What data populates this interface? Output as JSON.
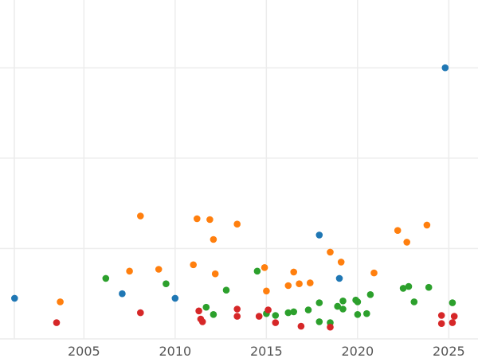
{
  "chart_data": {
    "type": "scatter",
    "title": "",
    "xlabel": "",
    "ylabel": "",
    "xlim": [
      2000.4,
      2026.6
    ],
    "ylim": [
      0,
      3.75
    ],
    "x_ticks": [
      2005,
      2010,
      2015,
      2020,
      2025
    ],
    "y_gridlines": [
      0,
      1,
      2,
      3
    ],
    "grid": true,
    "legend": "none",
    "colors": {
      "blue": "#1f77b4",
      "orange": "#ff7f0e",
      "green": "#2ca02c",
      "red": "#d62728"
    },
    "series": [
      {
        "color": "#1f77b4",
        "points": [
          [
            2001.2,
            0.45
          ],
          [
            2007.1,
            0.5
          ],
          [
            2010.0,
            0.45
          ],
          [
            2017.9,
            1.15
          ],
          [
            2019.0,
            0.67
          ],
          [
            2024.8,
            3.0
          ]
        ]
      },
      {
        "color": "#ff7f0e",
        "points": [
          [
            2003.7,
            0.41
          ],
          [
            2007.5,
            0.75
          ],
          [
            2008.1,
            1.36
          ],
          [
            2009.1,
            0.77
          ],
          [
            2011.0,
            0.82
          ],
          [
            2011.2,
            1.33
          ],
          [
            2011.9,
            1.32
          ],
          [
            2012.1,
            1.1
          ],
          [
            2012.2,
            0.72
          ],
          [
            2013.4,
            1.27
          ],
          [
            2014.9,
            0.79
          ],
          [
            2015.0,
            0.53
          ],
          [
            2016.2,
            0.59
          ],
          [
            2016.5,
            0.74
          ],
          [
            2016.8,
            0.61
          ],
          [
            2017.4,
            0.62
          ],
          [
            2018.5,
            0.96
          ],
          [
            2019.1,
            0.85
          ],
          [
            2020.9,
            0.73
          ],
          [
            2022.2,
            1.2
          ],
          [
            2022.7,
            1.07
          ],
          [
            2023.8,
            1.26
          ]
        ]
      },
      {
        "color": "#2ca02c",
        "points": [
          [
            2006.2,
            0.67
          ],
          [
            2009.5,
            0.61
          ],
          [
            2011.7,
            0.35
          ],
          [
            2012.1,
            0.27
          ],
          [
            2012.8,
            0.54
          ],
          [
            2014.5,
            0.75
          ],
          [
            2015.0,
            0.28
          ],
          [
            2015.5,
            0.26
          ],
          [
            2016.2,
            0.29
          ],
          [
            2016.5,
            0.3
          ],
          [
            2017.3,
            0.32
          ],
          [
            2017.9,
            0.4
          ],
          [
            2017.9,
            0.19
          ],
          [
            2018.5,
            0.18
          ],
          [
            2018.9,
            0.36
          ],
          [
            2019.2,
            0.42
          ],
          [
            2019.2,
            0.33
          ],
          [
            2019.9,
            0.43
          ],
          [
            2020.0,
            0.41
          ],
          [
            2020.0,
            0.27
          ],
          [
            2020.5,
            0.28
          ],
          [
            2020.7,
            0.49
          ],
          [
            2022.5,
            0.56
          ],
          [
            2022.8,
            0.58
          ],
          [
            2023.1,
            0.41
          ],
          [
            2023.9,
            0.57
          ],
          [
            2025.2,
            0.4
          ]
        ]
      },
      {
        "color": "#d62728",
        "points": [
          [
            2003.5,
            0.18
          ],
          [
            2008.1,
            0.29
          ],
          [
            2011.3,
            0.31
          ],
          [
            2011.4,
            0.22
          ],
          [
            2011.5,
            0.19
          ],
          [
            2013.4,
            0.33
          ],
          [
            2013.4,
            0.25
          ],
          [
            2014.6,
            0.25
          ],
          [
            2015.1,
            0.32
          ],
          [
            2015.5,
            0.18
          ],
          [
            2016.9,
            0.14
          ],
          [
            2018.5,
            0.13
          ],
          [
            2024.6,
            0.26
          ],
          [
            2024.6,
            0.17
          ],
          [
            2025.2,
            0.18
          ],
          [
            2025.3,
            0.25
          ]
        ]
      }
    ]
  }
}
